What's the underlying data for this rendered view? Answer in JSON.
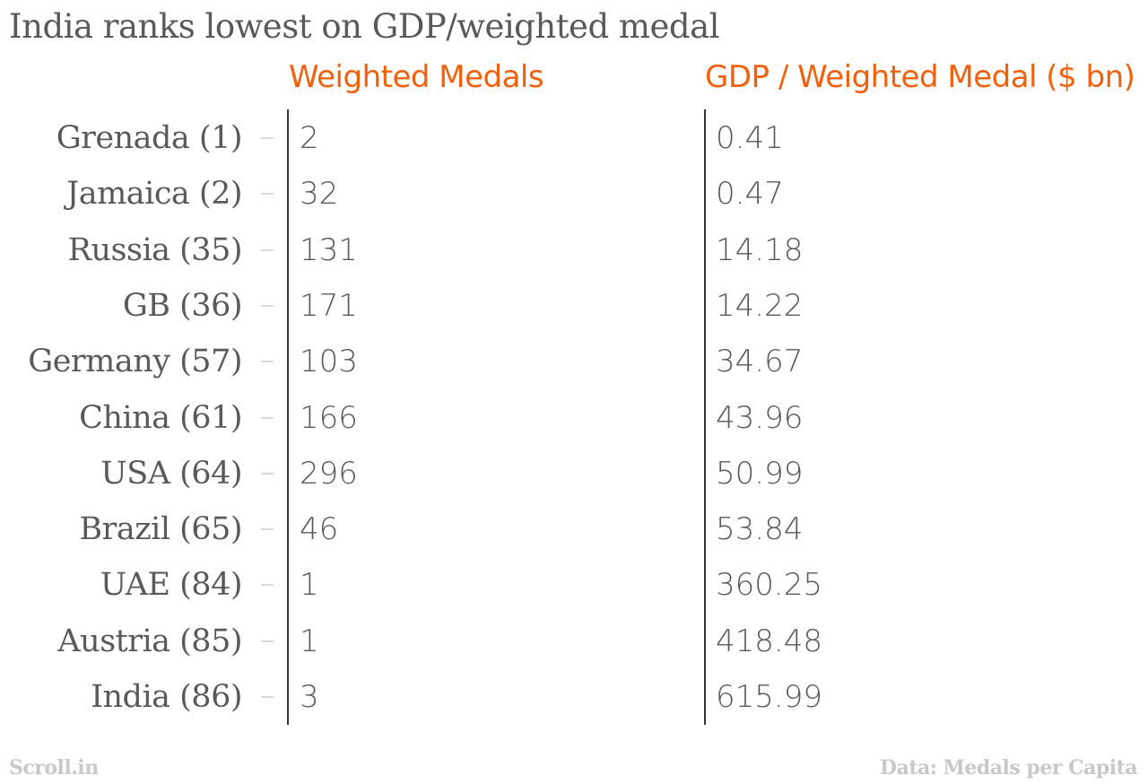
{
  "chart_data": {
    "type": "table",
    "title": "India ranks lowest on GDP/weighted medal",
    "columns": [
      "Weighted Medals",
      "GDP / Weighted Medal ($ bn)"
    ],
    "rows": [
      {
        "label": "Grenada (1)",
        "weighted_medals": "2",
        "gdp_per_medal": "0.41"
      },
      {
        "label": "Jamaica (2)",
        "weighted_medals": "32",
        "gdp_per_medal": "0.47"
      },
      {
        "label": "Russia (35)",
        "weighted_medals": "131",
        "gdp_per_medal": "14.18"
      },
      {
        "label": "GB (36)",
        "weighted_medals": "171",
        "gdp_per_medal": "14.22"
      },
      {
        "label": "Germany (57)",
        "weighted_medals": "103",
        "gdp_per_medal": "34.67"
      },
      {
        "label": "China (61)",
        "weighted_medals": "166",
        "gdp_per_medal": "43.96"
      },
      {
        "label": "USA (64)",
        "weighted_medals": "296",
        "gdp_per_medal": "50.99"
      },
      {
        "label": "Brazil (65)",
        "weighted_medals": "46",
        "gdp_per_medal": "53.84"
      },
      {
        "label": "UAE (84)",
        "weighted_medals": "1",
        "gdp_per_medal": "360.25"
      },
      {
        "label": "Austria (85)",
        "weighted_medals": "1",
        "gdp_per_medal": "418.48"
      },
      {
        "label": "India (86)",
        "weighted_medals": "3",
        "gdp_per_medal": "615.99"
      }
    ],
    "source_left": "Scroll.in",
    "source_right": "Data: Medals per Capita",
    "colors": {
      "header": "#f2600c",
      "text": "#595959",
      "footer": "#c8c8c8",
      "axis": "#333333"
    }
  }
}
